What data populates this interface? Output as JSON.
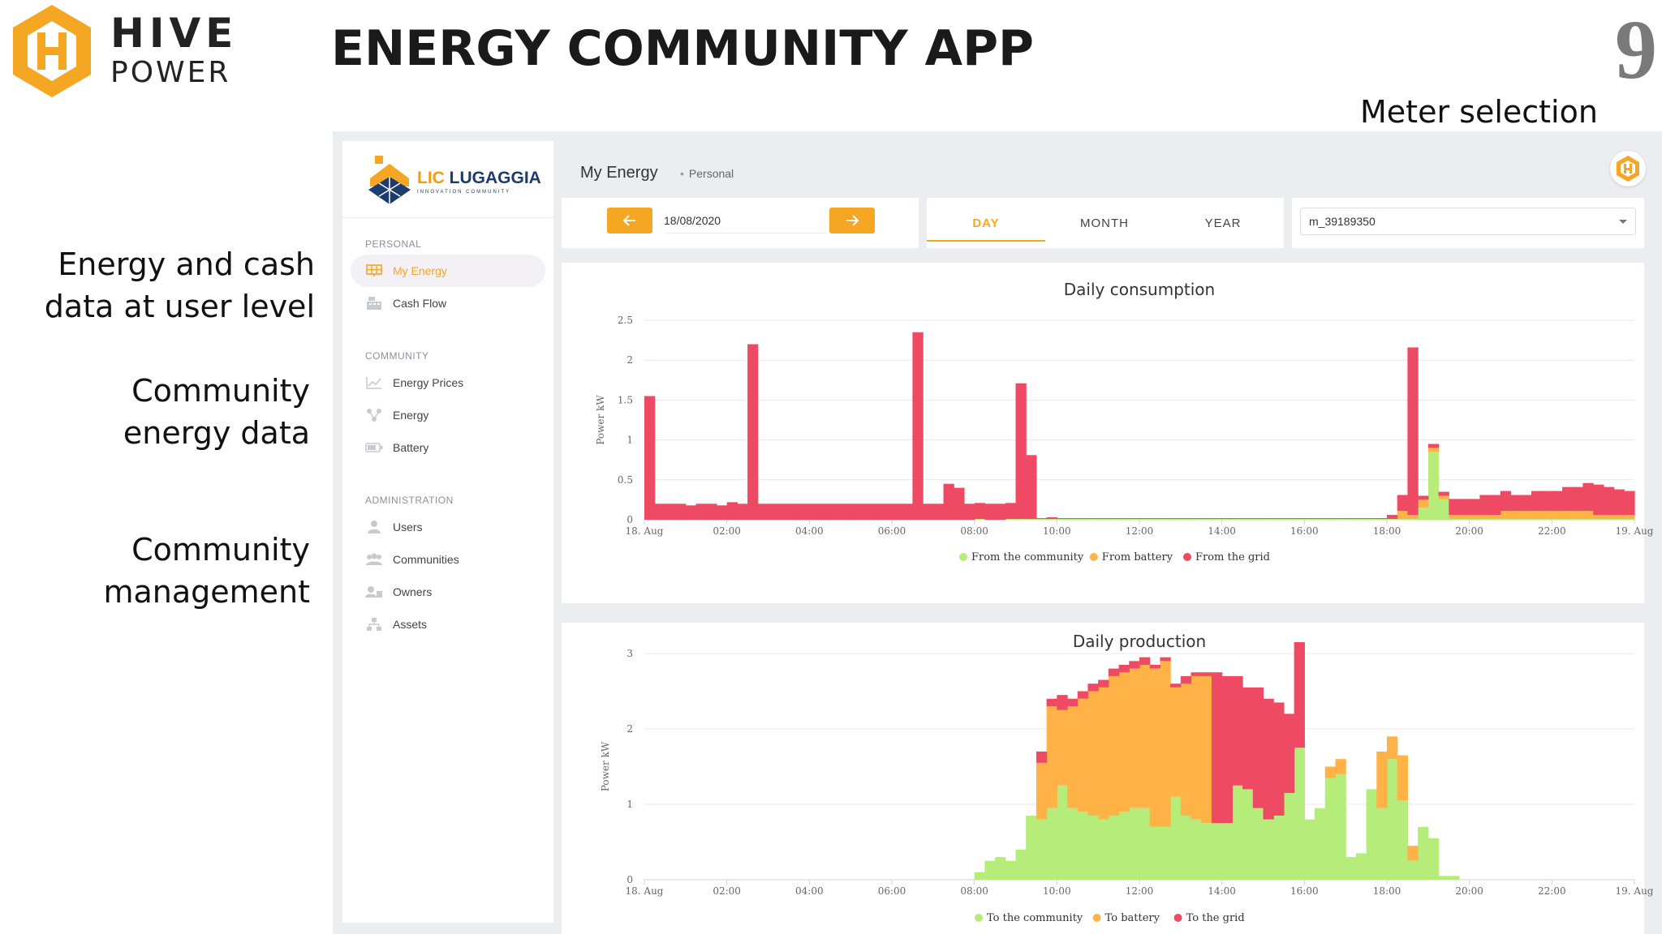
{
  "slide": {
    "brand_name": "HIVE",
    "brand_sub": "POWER",
    "title": "ENERGY COMMUNITY APP",
    "page_number": "9",
    "meter_caption": "Meter selection",
    "captions": {
      "user_level_line1": "Energy and cash",
      "user_level_line2": "data at user level",
      "community_line1": "Community",
      "community_line2": "energy data",
      "management_line1": "Community",
      "management_line2": "management"
    }
  },
  "app": {
    "logo": {
      "title_accent": "LIC",
      "title_main": "LUGAGGIA",
      "subtitle": "INNOVATION COMMUNITY"
    },
    "sidebar": {
      "personal_label": "PERSONAL",
      "personal": [
        {
          "label": "My Energy",
          "icon": "solar-panel-icon",
          "active": true
        },
        {
          "label": "Cash Flow",
          "icon": "cash-register-icon"
        }
      ],
      "community_label": "COMMUNITY",
      "community": [
        {
          "label": "Energy Prices",
          "icon": "line-chart-icon"
        },
        {
          "label": "Energy",
          "icon": "network-icon"
        },
        {
          "label": "Battery",
          "icon": "battery-icon"
        }
      ],
      "administration_label": "ADMINISTRATION",
      "administration": [
        {
          "label": "Users",
          "icon": "user-icon"
        },
        {
          "label": "Communities",
          "icon": "group-icon"
        },
        {
          "label": "Owners",
          "icon": "owner-icon"
        },
        {
          "label": "Assets",
          "icon": "sitemap-icon"
        }
      ]
    },
    "header": {
      "title": "My Energy",
      "breadcrumb": "Personal"
    },
    "date": "18/08/2020",
    "tabs": [
      "DAY",
      "MONTH",
      "YEAR"
    ],
    "active_tab": "DAY",
    "meter": "m_39189350",
    "colors": {
      "accent": "#f5a623",
      "community": "#b5ec7a",
      "battery": "#ffb347",
      "grid": "#ee4a63"
    }
  },
  "chart_data": [
    {
      "type": "area",
      "title": "Daily consumption",
      "ylabel": "Power kW",
      "xlabel": "",
      "stacked": true,
      "step": true,
      "x_ticks": [
        "18. Aug",
        "02:00",
        "04:00",
        "06:00",
        "08:00",
        "10:00",
        "12:00",
        "14:00",
        "16:00",
        "18:00",
        "20:00",
        "22:00",
        "19. Aug"
      ],
      "y_ticks": [
        "0",
        "0.5",
        "1",
        "1.5",
        "2",
        "2.5"
      ],
      "ylim": [
        0,
        2.5
      ],
      "x_hours": [
        0.0,
        0.25,
        0.5,
        0.75,
        1.0,
        1.25,
        1.5,
        1.75,
        2.0,
        2.25,
        2.5,
        2.75,
        3.0,
        3.25,
        3.5,
        3.75,
        4.0,
        4.25,
        4.5,
        4.75,
        5.0,
        5.25,
        5.5,
        5.75,
        6.0,
        6.25,
        6.5,
        6.75,
        7.0,
        7.25,
        7.5,
        7.75,
        8.0,
        8.25,
        8.5,
        8.75,
        9.0,
        9.25,
        9.5,
        9.75,
        10.0,
        10.25,
        10.5,
        10.75,
        11.0,
        11.25,
        11.5,
        11.75,
        12.0,
        12.25,
        12.5,
        12.75,
        13.0,
        13.25,
        13.5,
        13.75,
        14.0,
        14.25,
        14.5,
        14.75,
        15.0,
        15.25,
        15.5,
        15.75,
        16.0,
        16.25,
        16.5,
        16.75,
        17.0,
        17.25,
        17.5,
        17.75,
        18.0,
        18.25,
        18.5,
        18.75,
        19.0,
        19.25,
        19.5,
        19.75,
        20.0,
        20.25,
        20.5,
        20.75,
        21.0,
        21.25,
        21.5,
        21.75,
        22.0,
        22.25,
        22.5,
        22.75,
        23.0,
        23.25,
        23.5,
        23.75
      ],
      "legend": [
        "From the community",
        "From battery",
        "From the grid"
      ],
      "series": [
        {
          "name": "From the community",
          "color": "#b5ec7a",
          "values": [
            0,
            0,
            0,
            0,
            0,
            0,
            0,
            0,
            0,
            0,
            0,
            0,
            0,
            0,
            0,
            0,
            0,
            0,
            0,
            0,
            0,
            0,
            0,
            0,
            0,
            0,
            0,
            0,
            0,
            0,
            0,
            0,
            0.01,
            0,
            0,
            0.01,
            0.01,
            0.01,
            0.01,
            0.01,
            0.01,
            0.01,
            0.01,
            0.01,
            0.01,
            0.01,
            0.01,
            0.01,
            0.01,
            0.01,
            0.01,
            0.01,
            0.01,
            0.01,
            0.01,
            0.01,
            0.01,
            0.01,
            0.01,
            0.01,
            0.01,
            0.01,
            0.01,
            0.01,
            0.01,
            0.01,
            0.01,
            0.01,
            0.01,
            0.01,
            0.01,
            0.01,
            0.01,
            0.01,
            0.01,
            0.15,
            0.85,
            0.25,
            0.01,
            0.01,
            0.01,
            0.01,
            0.01,
            0.01,
            0.01,
            0.01,
            0.01,
            0.01,
            0.01,
            0.01,
            0.01,
            0.01,
            0.01,
            0.01,
            0.01,
            0.01
          ]
        },
        {
          "name": "From battery",
          "color": "#ffb347",
          "values": [
            0,
            0,
            0,
            0,
            0,
            0,
            0,
            0,
            0,
            0,
            0,
            0,
            0,
            0,
            0,
            0,
            0,
            0,
            0,
            0,
            0,
            0,
            0,
            0,
            0,
            0,
            0,
            0,
            0,
            0,
            0,
            0,
            0,
            0,
            0,
            0,
            0,
            0,
            0,
            0,
            0,
            0,
            0,
            0,
            0,
            0,
            0,
            0,
            0,
            0,
            0,
            0,
            0,
            0,
            0,
            0,
            0,
            0,
            0,
            0,
            0,
            0,
            0,
            0,
            0,
            0,
            0,
            0,
            0,
            0,
            0,
            0,
            0,
            0.1,
            0.05,
            0.1,
            0.05,
            0.05,
            0.05,
            0.05,
            0.05,
            0.05,
            0.05,
            0.1,
            0.1,
            0.1,
            0.1,
            0.1,
            0.1,
            0.1,
            0.1,
            0.1,
            0.05,
            0.05,
            0.05,
            0.05
          ]
        },
        {
          "name": "From the grid",
          "color": "#ee4a63",
          "values": [
            1.55,
            0.2,
            0.2,
            0.2,
            0.18,
            0.2,
            0.2,
            0.18,
            0.22,
            0.2,
            2.2,
            0.2,
            0.2,
            0.2,
            0.2,
            0.2,
            0.2,
            0.2,
            0.2,
            0.2,
            0.2,
            0.2,
            0.2,
            0.2,
            0.2,
            0.2,
            2.35,
            0.2,
            0.2,
            0.45,
            0.4,
            0.2,
            0.2,
            0.2,
            0.2,
            0.2,
            1.7,
            0.8,
            0.01,
            0.02,
            0.01,
            0.01,
            0.01,
            0.01,
            0.01,
            0.01,
            0.01,
            0.01,
            0.01,
            0.01,
            0.01,
            0.01,
            0.01,
            0.01,
            0.01,
            0.01,
            0.01,
            0.01,
            0.01,
            0.01,
            0.01,
            0.01,
            0.01,
            0.01,
            0.01,
            0.01,
            0.01,
            0.01,
            0.01,
            0.01,
            0.01,
            0.01,
            0.05,
            0.2,
            2.1,
            0.05,
            0.05,
            0.05,
            0.2,
            0.2,
            0.2,
            0.25,
            0.25,
            0.25,
            0.2,
            0.2,
            0.25,
            0.25,
            0.25,
            0.3,
            0.3,
            0.35,
            0.38,
            0.35,
            0.32,
            0.3
          ]
        }
      ]
    },
    {
      "type": "area",
      "title": "Daily production",
      "ylabel": "Power kW",
      "xlabel": "",
      "stacked": true,
      "step": true,
      "x_ticks": [
        "18. Aug",
        "02:00",
        "04:00",
        "06:00",
        "08:00",
        "10:00",
        "12:00",
        "14:00",
        "16:00",
        "18:00",
        "20:00",
        "22:00",
        "19. Aug"
      ],
      "y_ticks": [
        "0",
        "1",
        "2",
        "3"
      ],
      "ylim": [
        0,
        3
      ],
      "x_hours": [
        0.0,
        0.25,
        0.5,
        0.75,
        1.0,
        1.25,
        1.5,
        1.75,
        2.0,
        2.25,
        2.5,
        2.75,
        3.0,
        3.25,
        3.5,
        3.75,
        4.0,
        4.25,
        4.5,
        4.75,
        5.0,
        5.25,
        5.5,
        5.75,
        6.0,
        6.25,
        6.5,
        6.75,
        7.0,
        7.25,
        7.5,
        7.75,
        8.0,
        8.25,
        8.5,
        8.75,
        9.0,
        9.25,
        9.5,
        9.75,
        10.0,
        10.25,
        10.5,
        10.75,
        11.0,
        11.25,
        11.5,
        11.75,
        12.0,
        12.25,
        12.5,
        12.75,
        13.0,
        13.25,
        13.5,
        13.75,
        14.0,
        14.25,
        14.5,
        14.75,
        15.0,
        15.25,
        15.5,
        15.75,
        16.0,
        16.25,
        16.5,
        16.75,
        17.0,
        17.25,
        17.5,
        17.75,
        18.0,
        18.25,
        18.5,
        18.75,
        19.0,
        19.25,
        19.5,
        19.75,
        20.0,
        20.25,
        20.5,
        20.75,
        21.0,
        21.25,
        21.5,
        21.75,
        22.0,
        22.25,
        22.5,
        22.75,
        23.0,
        23.25,
        23.5,
        23.75
      ],
      "legend": [
        "To the community",
        "To battery",
        "To the grid"
      ],
      "series": [
        {
          "name": "To the community",
          "color": "#b5ec7a",
          "values": [
            0,
            0,
            0,
            0,
            0,
            0,
            0,
            0,
            0,
            0,
            0,
            0,
            0,
            0,
            0,
            0,
            0,
            0,
            0,
            0,
            0,
            0,
            0,
            0,
            0,
            0,
            0,
            0,
            0,
            0,
            0,
            0,
            0.1,
            0.25,
            0.3,
            0.25,
            0.4,
            0.85,
            0.8,
            0.95,
            1.25,
            0.95,
            0.9,
            0.85,
            0.8,
            0.85,
            0.9,
            0.95,
            0.95,
            0.7,
            0.7,
            1.1,
            0.85,
            0.8,
            0.75,
            0.75,
            0.75,
            1.25,
            1.2,
            0.95,
            0.8,
            0.85,
            1.15,
            1.75,
            0.8,
            0.95,
            1.35,
            1.4,
            0.3,
            0.35,
            1.2,
            0.95,
            1.6,
            1.05,
            0.25,
            0.7,
            0.55,
            0.05,
            0.05,
            0,
            0,
            0,
            0,
            0,
            0,
            0,
            0,
            0,
            0,
            0,
            0,
            0,
            0,
            0,
            0,
            0
          ]
        },
        {
          "name": "To battery",
          "color": "#ffb347",
          "values": [
            0,
            0,
            0,
            0,
            0,
            0,
            0,
            0,
            0,
            0,
            0,
            0,
            0,
            0,
            0,
            0,
            0,
            0,
            0,
            0,
            0,
            0,
            0,
            0,
            0,
            0,
            0,
            0,
            0,
            0,
            0,
            0,
            0,
            0,
            0,
            0,
            0,
            0,
            0.75,
            1.35,
            1.0,
            1.35,
            1.5,
            1.65,
            1.75,
            1.85,
            1.85,
            1.85,
            1.9,
            2.1,
            2.2,
            1.45,
            1.75,
            1.9,
            1.95,
            0,
            0,
            0,
            0,
            0,
            0,
            0,
            0,
            0,
            0,
            0,
            0.15,
            0.2,
            0,
            0,
            0,
            0.75,
            0.3,
            0.6,
            0.2,
            0,
            0,
            0,
            0,
            0,
            0,
            0,
            0,
            0,
            0,
            0,
            0,
            0,
            0,
            0,
            0,
            0,
            0,
            0,
            0,
            0
          ]
        },
        {
          "name": "To the grid",
          "color": "#ee4a63",
          "values": [
            0,
            0,
            0,
            0,
            0,
            0,
            0,
            0,
            0,
            0,
            0,
            0,
            0,
            0,
            0,
            0,
            0,
            0,
            0,
            0,
            0,
            0,
            0,
            0,
            0,
            0,
            0,
            0,
            0,
            0,
            0,
            0,
            0,
            0,
            0,
            0,
            0,
            0,
            0.15,
            0.1,
            0.2,
            0.1,
            0.1,
            0.1,
            0.1,
            0.1,
            0.1,
            0.1,
            0.1,
            0.05,
            0.05,
            0.05,
            0.1,
            0.05,
            0.05,
            2.0,
            1.95,
            1.45,
            1.35,
            1.6,
            1.6,
            1.5,
            1.05,
            1.4,
            0,
            0,
            0,
            0,
            0,
            0,
            0,
            0,
            0,
            0,
            0,
            0,
            0,
            0,
            0,
            0,
            0,
            0,
            0,
            0,
            0,
            0,
            0,
            0,
            0,
            0,
            0,
            0,
            0,
            0,
            0,
            0
          ]
        }
      ]
    }
  ]
}
